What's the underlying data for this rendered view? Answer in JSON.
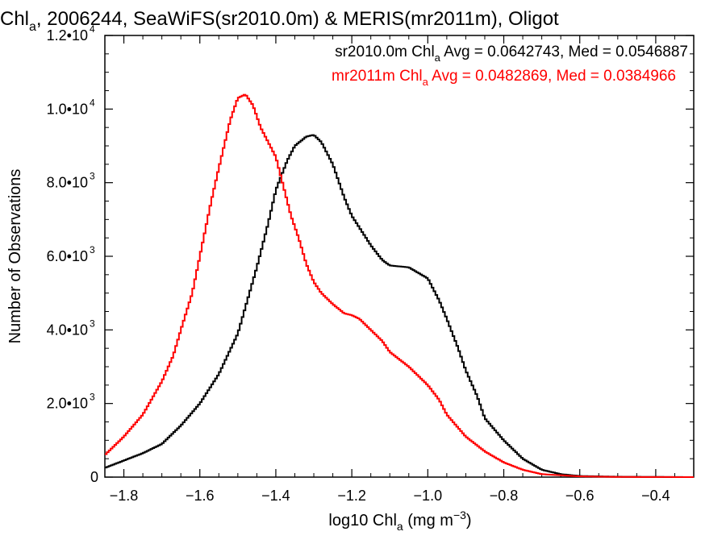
{
  "chart_data": {
    "type": "line",
    "title": "Chla, 2006244, SeaWiFS(sr2010.0m) & MERIS(mr2011m), Oligot",
    "title_parts": {
      "pre": "Chl",
      "sub": "a",
      "post": ", 2006244, SeaWiFS(sr2010.0m) & MERIS(mr2011m), Oligot"
    },
    "xlabel": "log10 Chla (mg m-3)",
    "xlabel_parts": {
      "pre": "log10 Chl",
      "sub": "a",
      "mid": " (mg m",
      "sup": "−3",
      "post": ")"
    },
    "ylabel": "Number of Observations",
    "xlim": [
      -1.85,
      -0.3
    ],
    "ylim": [
      0,
      12000
    ],
    "x_tick_values": [
      -1.8,
      -1.6,
      -1.4,
      -1.2,
      -1.0,
      -0.8,
      -0.6,
      -0.4
    ],
    "x_ticks": [
      "−1.8",
      "−1.6",
      "−1.4",
      "−1.2",
      "−1.0",
      "−0.8",
      "−0.6",
      "−0.4"
    ],
    "y_ticks": [
      {
        "value": 0,
        "mant": "0",
        "exp": ""
      },
      {
        "value": 2000,
        "mant": "2.0•10",
        "exp": "3"
      },
      {
        "value": 4000,
        "mant": "4.0•10",
        "exp": "3"
      },
      {
        "value": 6000,
        "mant": "6.0•10",
        "exp": "3"
      },
      {
        "value": 8000,
        "mant": "8.0•10",
        "exp": "3"
      },
      {
        "value": 10000,
        "mant": "1.0•10",
        "exp": "4"
      },
      {
        "value": 12000,
        "mant": "1.2•10",
        "exp": "4"
      }
    ],
    "grid": false,
    "legend_position": "top-right",
    "series": [
      {
        "name": "sr2010.0m",
        "color": "#000000",
        "label_parts": {
          "pre": "sr2010.0m Chl",
          "sub": "a",
          "post": " Avg = 0.0642743, Med = 0.0546887"
        },
        "points": [
          [
            -1.85,
            250
          ],
          [
            -1.8,
            450
          ],
          [
            -1.75,
            650
          ],
          [
            -1.7,
            900
          ],
          [
            -1.65,
            1400
          ],
          [
            -1.6,
            2000
          ],
          [
            -1.55,
            2800
          ],
          [
            -1.5,
            3900
          ],
          [
            -1.45,
            5700
          ],
          [
            -1.42,
            6900
          ],
          [
            -1.4,
            7800
          ],
          [
            -1.37,
            8600
          ],
          [
            -1.35,
            9000
          ],
          [
            -1.32,
            9250
          ],
          [
            -1.3,
            9300
          ],
          [
            -1.28,
            9100
          ],
          [
            -1.25,
            8500
          ],
          [
            -1.22,
            7600
          ],
          [
            -1.2,
            7100
          ],
          [
            -1.15,
            6300
          ],
          [
            -1.12,
            5900
          ],
          [
            -1.1,
            5750
          ],
          [
            -1.05,
            5700
          ],
          [
            -1.0,
            5400
          ],
          [
            -0.97,
            4800
          ],
          [
            -0.95,
            4300
          ],
          [
            -0.92,
            3500
          ],
          [
            -0.9,
            2900
          ],
          [
            -0.87,
            2200
          ],
          [
            -0.85,
            1600
          ],
          [
            -0.8,
            1000
          ],
          [
            -0.75,
            500
          ],
          [
            -0.7,
            200
          ],
          [
            -0.65,
            80
          ],
          [
            -0.6,
            30
          ],
          [
            -0.5,
            10
          ],
          [
            -0.3,
            0
          ]
        ]
      },
      {
        "name": "mr2011m",
        "color": "#ff0000",
        "label_parts": {
          "pre": "mr2011m Chl",
          "sub": "a",
          "post": " Avg = 0.0482869, Med = 0.0384966"
        },
        "points": [
          [
            -1.85,
            600
          ],
          [
            -1.8,
            1100
          ],
          [
            -1.75,
            1700
          ],
          [
            -1.7,
            2600
          ],
          [
            -1.67,
            3300
          ],
          [
            -1.65,
            4000
          ],
          [
            -1.62,
            5000
          ],
          [
            -1.6,
            6000
          ],
          [
            -1.57,
            7500
          ],
          [
            -1.55,
            8400
          ],
          [
            -1.52,
            9700
          ],
          [
            -1.5,
            10300
          ],
          [
            -1.48,
            10400
          ],
          [
            -1.46,
            10100
          ],
          [
            -1.44,
            9500
          ],
          [
            -1.42,
            9100
          ],
          [
            -1.4,
            8700
          ],
          [
            -1.38,
            7900
          ],
          [
            -1.36,
            7100
          ],
          [
            -1.34,
            6500
          ],
          [
            -1.32,
            5800
          ],
          [
            -1.3,
            5300
          ],
          [
            -1.28,
            5000
          ],
          [
            -1.25,
            4700
          ],
          [
            -1.22,
            4450
          ],
          [
            -1.2,
            4400
          ],
          [
            -1.18,
            4300
          ],
          [
            -1.15,
            4000
          ],
          [
            -1.12,
            3700
          ],
          [
            -1.1,
            3400
          ],
          [
            -1.05,
            3000
          ],
          [
            -1.0,
            2500
          ],
          [
            -0.97,
            2100
          ],
          [
            -0.95,
            1700
          ],
          [
            -0.9,
            1100
          ],
          [
            -0.85,
            700
          ],
          [
            -0.8,
            400
          ],
          [
            -0.75,
            200
          ],
          [
            -0.7,
            80
          ],
          [
            -0.6,
            20
          ],
          [
            -0.5,
            5
          ],
          [
            -0.3,
            0
          ]
        ]
      }
    ]
  }
}
